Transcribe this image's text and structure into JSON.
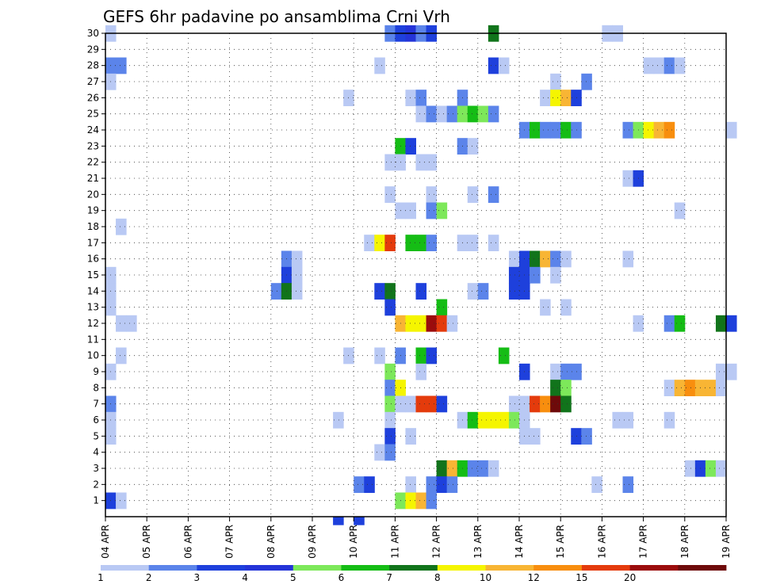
{
  "chart_data": {
    "type": "heatmap",
    "title": "GEFS 6hr padavine po ansamblima Crni Vrh",
    "xlabel": "",
    "ylabel": "",
    "x_ticks": [
      "04 APR",
      "05 APR",
      "06 APR",
      "07 APR",
      "08 APR",
      "09 APR",
      "10 APR",
      "11 APR",
      "12 APR",
      "13 APR",
      "14 APR",
      "15 APR",
      "16 APR",
      "17 APR",
      "18 APR",
      "19 APR"
    ],
    "y_ticks": [
      1,
      2,
      3,
      4,
      5,
      6,
      7,
      8,
      9,
      10,
      11,
      12,
      13,
      14,
      15,
      16,
      17,
      18,
      19,
      20,
      21,
      22,
      23,
      24,
      25,
      26,
      27,
      28,
      29,
      30
    ],
    "x_range_days": [
      0,
      15
    ],
    "y_range": [
      0,
      30
    ],
    "step_hours": 6,
    "grid": true,
    "colorbar": {
      "labels": [
        "1",
        "2",
        "3",
        "4",
        "5",
        "6",
        "7",
        "8",
        "10",
        "12",
        "15",
        "20"
      ],
      "colors": [
        "#b9c9f4",
        "#5b84ea",
        "#1e40dc",
        "#2434d8",
        "#7de85a",
        "#15bd15",
        "#11741b",
        "#f5f500",
        "#f8b534",
        "#f88e0e",
        "#e43b0c",
        "#9b0c0c",
        "#6e0a0a"
      ]
    },
    "cells": [
      {
        "m": 30,
        "t": [
          [
            0,
            0
          ],
          [
            27,
            1
          ],
          [
            28,
            2
          ],
          [
            29,
            3
          ],
          [
            30,
            1
          ],
          [
            31,
            2
          ],
          [
            37,
            6
          ],
          [
            48,
            0
          ],
          [
            49,
            0
          ]
        ]
      },
      {
        "m": 28,
        "t": [
          [
            0,
            1
          ],
          [
            1,
            1
          ],
          [
            26,
            0
          ],
          [
            37,
            2
          ],
          [
            38,
            0
          ],
          [
            52,
            0
          ],
          [
            53,
            0
          ],
          [
            54,
            1
          ],
          [
            55,
            0
          ]
        ]
      },
      {
        "m": 27,
        "t": [
          [
            0,
            0
          ],
          [
            43,
            0
          ],
          [
            46,
            1
          ]
        ]
      },
      {
        "m": 26,
        "t": [
          [
            23,
            0
          ],
          [
            29,
            0
          ],
          [
            30,
            1
          ],
          [
            34,
            1
          ],
          [
            42,
            0
          ],
          [
            43,
            7
          ],
          [
            44,
            8
          ],
          [
            45,
            2
          ]
        ]
      },
      {
        "m": 25,
        "t": [
          [
            30,
            0
          ],
          [
            31,
            1
          ],
          [
            32,
            0
          ],
          [
            33,
            1
          ],
          [
            34,
            4
          ],
          [
            35,
            5
          ],
          [
            36,
            4
          ],
          [
            37,
            1
          ]
        ]
      },
      {
        "m": 24,
        "t": [
          [
            40,
            1
          ],
          [
            41,
            5
          ],
          [
            42,
            1
          ],
          [
            43,
            1
          ],
          [
            44,
            5
          ],
          [
            45,
            1
          ],
          [
            50,
            1
          ],
          [
            51,
            4
          ],
          [
            52,
            7
          ],
          [
            53,
            8
          ],
          [
            54,
            9
          ],
          [
            60,
            0
          ]
        ]
      },
      {
        "m": 23,
        "t": [
          [
            28,
            5
          ],
          [
            29,
            2
          ],
          [
            34,
            1
          ],
          [
            35,
            0
          ]
        ]
      },
      {
        "m": 22,
        "t": [
          [
            27,
            0
          ],
          [
            28,
            0
          ],
          [
            30,
            0
          ],
          [
            31,
            0
          ]
        ]
      },
      {
        "m": 21,
        "t": [
          [
            50,
            0
          ],
          [
            51,
            2
          ]
        ]
      },
      {
        "m": 20,
        "t": [
          [
            27,
            0
          ],
          [
            31,
            0
          ],
          [
            35,
            0
          ],
          [
            37,
            1
          ]
        ]
      },
      {
        "m": 19,
        "t": [
          [
            28,
            0
          ],
          [
            29,
            0
          ],
          [
            31,
            1
          ],
          [
            32,
            4
          ],
          [
            55,
            0
          ]
        ]
      },
      {
        "m": 18,
        "t": [
          [
            1,
            0
          ]
        ]
      },
      {
        "m": 17,
        "t": [
          [
            25,
            0
          ],
          [
            26,
            7
          ],
          [
            27,
            10
          ],
          [
            29,
            5
          ],
          [
            30,
            5
          ],
          [
            31,
            1
          ],
          [
            34,
            0
          ],
          [
            35,
            0
          ],
          [
            37,
            0
          ]
        ]
      },
      {
        "m": 16,
        "t": [
          [
            17,
            1
          ],
          [
            18,
            0
          ],
          [
            39,
            0
          ],
          [
            40,
            2
          ],
          [
            41,
            6
          ],
          [
            42,
            8
          ],
          [
            43,
            1
          ],
          [
            44,
            0
          ],
          [
            50,
            0
          ]
        ]
      },
      {
        "m": 15,
        "t": [
          [
            0,
            0
          ],
          [
            17,
            2
          ],
          [
            18,
            0
          ],
          [
            39,
            2
          ],
          [
            40,
            2
          ],
          [
            41,
            1
          ],
          [
            43,
            0
          ]
        ]
      },
      {
        "m": 14,
        "t": [
          [
            0,
            0
          ],
          [
            16,
            1
          ],
          [
            17,
            6
          ],
          [
            18,
            0
          ],
          [
            26,
            2
          ],
          [
            27,
            6
          ],
          [
            30,
            2
          ],
          [
            35,
            0
          ],
          [
            36,
            1
          ],
          [
            39,
            2
          ],
          [
            40,
            2
          ]
        ]
      },
      {
        "m": 13,
        "t": [
          [
            0,
            0
          ],
          [
            27,
            2
          ],
          [
            32,
            5
          ],
          [
            42,
            0
          ],
          [
            44,
            0
          ]
        ]
      },
      {
        "m": 12,
        "t": [
          [
            1,
            0
          ],
          [
            2,
            0
          ],
          [
            28,
            8
          ],
          [
            29,
            7
          ],
          [
            30,
            7
          ],
          [
            31,
            11
          ],
          [
            32,
            10
          ],
          [
            33,
            0
          ],
          [
            51,
            0
          ],
          [
            54,
            1
          ],
          [
            55,
            5
          ],
          [
            59,
            6
          ],
          [
            60,
            2
          ]
        ]
      },
      {
        "m": 10,
        "t": [
          [
            1,
            0
          ],
          [
            23,
            0
          ],
          [
            26,
            0
          ],
          [
            28,
            1
          ],
          [
            30,
            5
          ],
          [
            31,
            2
          ],
          [
            38,
            5
          ]
        ]
      },
      {
        "m": 9,
        "t": [
          [
            0,
            0
          ],
          [
            27,
            4
          ],
          [
            30,
            0
          ],
          [
            40,
            2
          ],
          [
            43,
            0
          ],
          [
            44,
            1
          ],
          [
            45,
            1
          ],
          [
            59,
            0
          ],
          [
            60,
            0
          ]
        ]
      },
      {
        "m": 8,
        "t": [
          [
            27,
            1
          ],
          [
            28,
            7
          ],
          [
            43,
            6
          ],
          [
            44,
            4
          ],
          [
            54,
            0
          ],
          [
            55,
            8
          ],
          [
            56,
            9
          ],
          [
            57,
            8
          ],
          [
            58,
            8
          ],
          [
            59,
            0
          ]
        ]
      },
      {
        "m": 7,
        "t": [
          [
            0,
            1
          ],
          [
            27,
            4
          ],
          [
            28,
            0
          ],
          [
            29,
            0
          ],
          [
            30,
            10
          ],
          [
            31,
            10
          ],
          [
            32,
            2
          ],
          [
            39,
            0
          ],
          [
            40,
            0
          ],
          [
            41,
            10
          ],
          [
            42,
            9
          ],
          [
            43,
            12
          ],
          [
            44,
            6
          ]
        ]
      },
      {
        "m": 6,
        "t": [
          [
            0,
            0
          ],
          [
            22,
            0
          ],
          [
            27,
            0
          ],
          [
            34,
            0
          ],
          [
            35,
            5
          ],
          [
            36,
            7
          ],
          [
            37,
            7
          ],
          [
            38,
            7
          ],
          [
            39,
            4
          ],
          [
            40,
            0
          ],
          [
            49,
            0
          ],
          [
            50,
            0
          ],
          [
            54,
            0
          ]
        ]
      },
      {
        "m": 5,
        "t": [
          [
            0,
            0
          ],
          [
            27,
            2
          ],
          [
            29,
            0
          ],
          [
            40,
            0
          ],
          [
            41,
            0
          ],
          [
            45,
            2
          ],
          [
            46,
            1
          ]
        ]
      },
      {
        "m": 4,
        "t": [
          [
            26,
            0
          ],
          [
            27,
            1
          ]
        ]
      },
      {
        "m": 3,
        "t": [
          [
            32,
            6
          ],
          [
            33,
            8
          ],
          [
            34,
            5
          ],
          [
            35,
            1
          ],
          [
            36,
            1
          ],
          [
            37,
            0
          ],
          [
            56,
            0
          ],
          [
            57,
            2
          ],
          [
            58,
            4
          ],
          [
            59,
            0
          ]
        ]
      },
      {
        "m": 2,
        "t": [
          [
            24,
            1
          ],
          [
            25,
            2
          ],
          [
            29,
            0
          ],
          [
            31,
            1
          ],
          [
            32,
            2
          ],
          [
            33,
            1
          ],
          [
            47,
            0
          ],
          [
            50,
            1
          ]
        ]
      },
      {
        "m": 1,
        "t": [
          [
            0,
            2
          ],
          [
            1,
            0
          ],
          [
            28,
            4
          ],
          [
            29,
            7
          ],
          [
            30,
            8
          ],
          [
            31,
            1
          ]
        ]
      },
      {
        "m": 0,
        "t": [
          [
            22,
            2
          ],
          [
            24,
            2
          ]
        ]
      }
    ]
  }
}
